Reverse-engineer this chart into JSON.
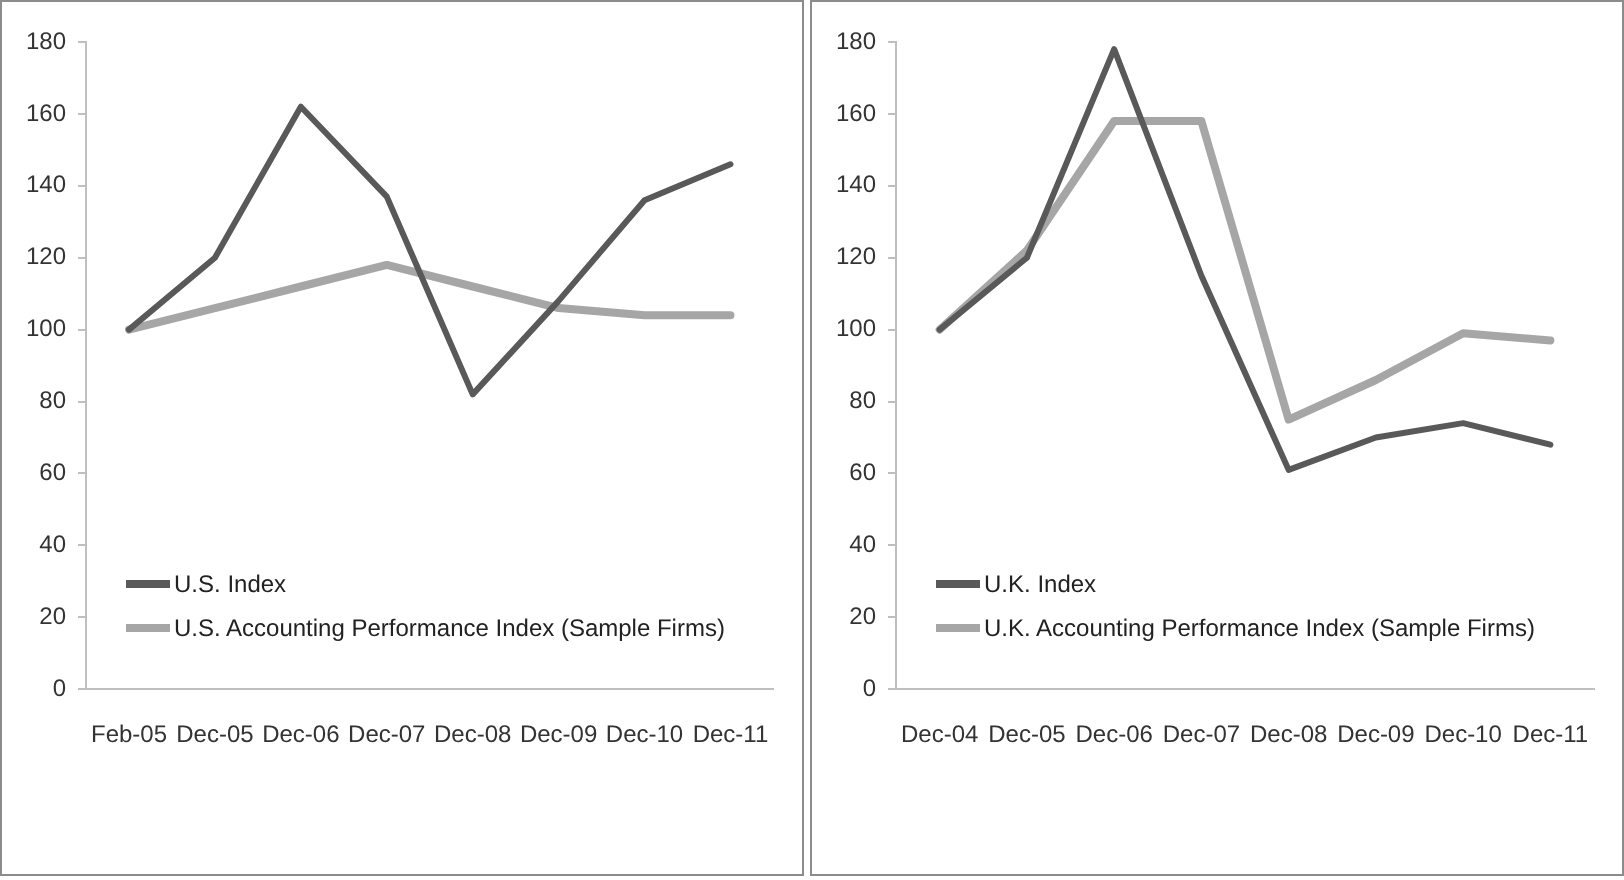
{
  "chart_data": [
    {
      "type": "line",
      "categories": [
        "Feb-05",
        "Dec-05",
        "Dec-06",
        "Dec-07",
        "Dec-08",
        "Dec-09",
        "Dec-10",
        "Dec-11"
      ],
      "ylim": [
        0,
        180
      ],
      "yticks": [
        0,
        20,
        40,
        60,
        80,
        100,
        120,
        140,
        160,
        180
      ],
      "grid": false,
      "legend": "bottom left",
      "marker": "none",
      "line_style": "solid",
      "series": [
        {
          "name": "U.S. Index",
          "color": "#595959",
          "values": [
            100,
            120,
            162,
            137,
            82,
            108,
            136,
            146
          ]
        },
        {
          "name": "U.S. Accounting Performance Index (Sample Firms)",
          "color": "#a6a6a6",
          "values": [
            100,
            106,
            112,
            118,
            112,
            106,
            104,
            104
          ]
        }
      ]
    },
    {
      "type": "line",
      "categories": [
        "Dec-04",
        "Dec-05",
        "Dec-06",
        "Dec-07",
        "Dec-08",
        "Dec-09",
        "Dec-10",
        "Dec-11"
      ],
      "ylim": [
        0,
        180
      ],
      "yticks": [
        0,
        20,
        40,
        60,
        80,
        100,
        120,
        140,
        160,
        180
      ],
      "grid": false,
      "legend": "bottom left",
      "marker": "none",
      "line_style": "solid",
      "series": [
        {
          "name": "U.K. Index",
          "color": "#595959",
          "values": [
            100,
            120,
            178,
            115,
            61,
            70,
            74,
            68
          ]
        },
        {
          "name": "U.K. Accounting Performance Index (Sample Firms)",
          "color": "#a6a6a6",
          "values": [
            100,
            122,
            158,
            158,
            75,
            86,
            99,
            97
          ]
        }
      ]
    }
  ]
}
